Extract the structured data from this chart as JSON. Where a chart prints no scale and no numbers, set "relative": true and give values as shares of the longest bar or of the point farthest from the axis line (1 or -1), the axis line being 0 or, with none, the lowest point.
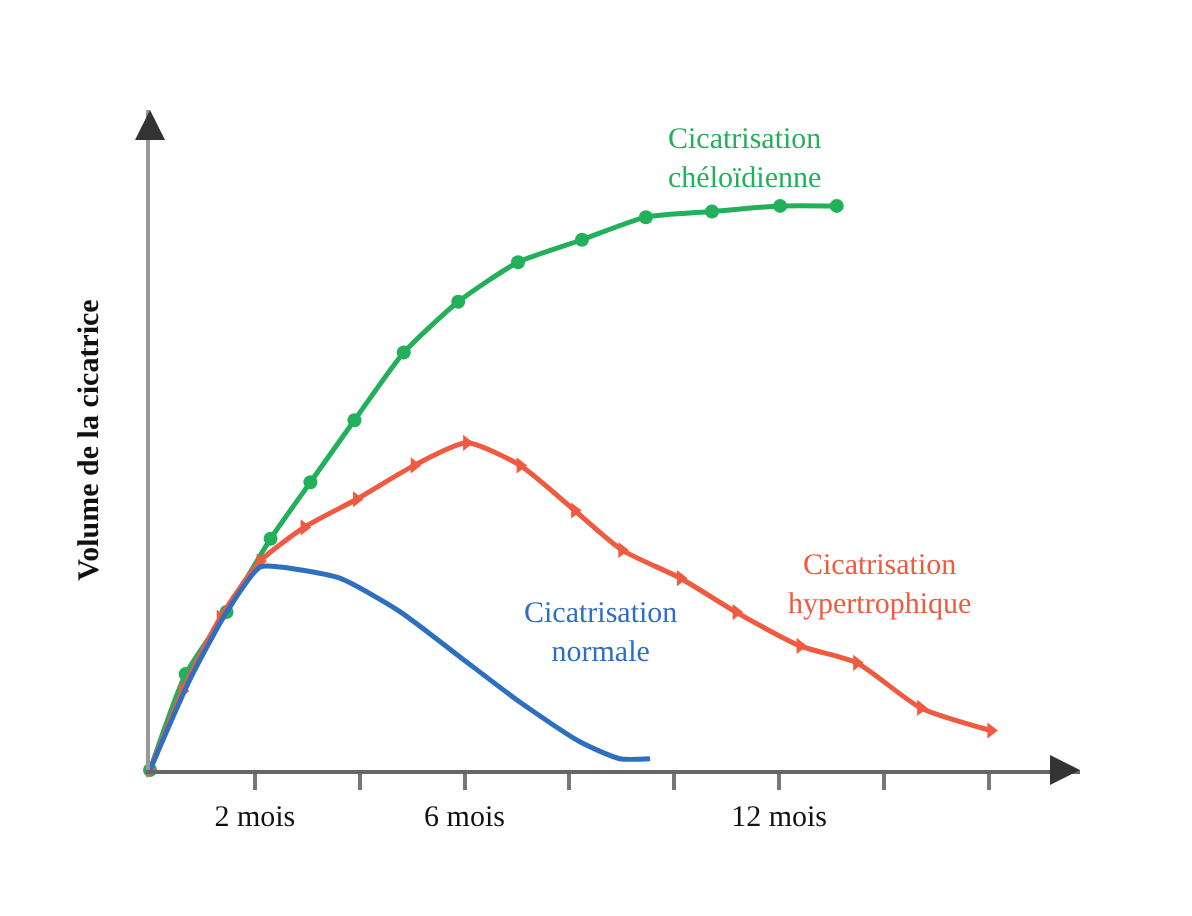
{
  "chart_data": {
    "type": "line",
    "relative": true,
    "ylabel": "Volume de la cicatrice",
    "xlim": [
      0,
      17.74
    ],
    "xticks": [
      {
        "value": 2,
        "label": "2 mois"
      },
      {
        "value": 4,
        "label": null
      },
      {
        "value": 6,
        "label": "6 mois"
      },
      {
        "value": 8,
        "label": null
      },
      {
        "value": 10,
        "label": null
      },
      {
        "value": 12,
        "label": "12 mois"
      },
      {
        "value": 14,
        "label": null
      },
      {
        "value": 16,
        "label": null
      }
    ],
    "legend": false,
    "series": [
      {
        "name": "Cicatrisation chéloïdienne",
        "color": "#22b05a",
        "marker": "circle",
        "x": [
          0,
          0.68,
          1.46,
          2.3,
          3.06,
          3.9,
          4.84,
          5.88,
          7.02,
          8.24,
          9.46,
          10.72,
          12.02,
          13.1
        ],
        "values": [
          0,
          0.17,
          0.28,
          0.41,
          0.51,
          0.62,
          0.74,
          0.83,
          0.9,
          0.94,
          0.98,
          0.99,
          1,
          1
        ]
      },
      {
        "name": "Cicatrisation hypertrophique",
        "color": "#f05a40",
        "marker": "triangle",
        "x": [
          0,
          0.62,
          1.34,
          2.1,
          2.94,
          3.94,
          5.04,
          6.04,
          7.06,
          8.1,
          9.0,
          10.12,
          11.18,
          12.4,
          13.48,
          14.7,
          16.04
        ],
        "values": [
          0,
          0.14,
          0.27,
          0.37,
          0.43,
          0.48,
          0.54,
          0.58,
          0.54,
          0.46,
          0.39,
          0.34,
          0.28,
          0.22,
          0.19,
          0.11,
          0.07
        ]
      },
      {
        "name": "Cicatrisation normale",
        "color": "#2f6fc0",
        "marker": "none",
        "x": [
          0,
          0.76,
          1.46,
          2.1,
          2.48,
          3.62,
          4.78,
          5.92,
          7.06,
          8.2,
          8.96,
          9.54
        ],
        "values": [
          0,
          0.16,
          0.28,
          0.36,
          0.36,
          0.34,
          0.28,
          0.2,
          0.12,
          0.05,
          0.02,
          0.02
        ]
      }
    ]
  }
}
